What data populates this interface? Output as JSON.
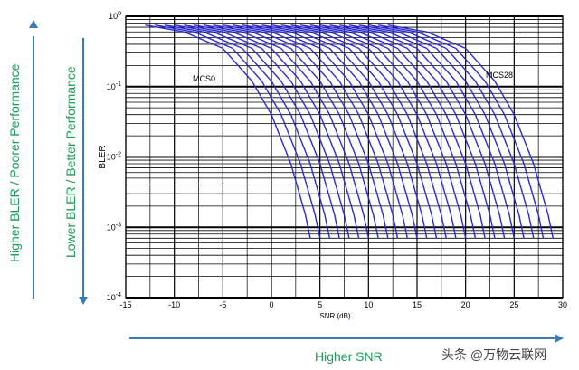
{
  "labels": {
    "left_outer": "Higher  BLER / Poorer Performance",
    "left_inner": "Lower  BLER / Better Performance",
    "bottom": "Higher SNR",
    "watermark": "头条 @万物云联网"
  },
  "colors": {
    "annotation": "#1f9a5a",
    "arrow": "#3a7ab6",
    "curve": "#2b2bd0"
  },
  "chart_data": {
    "type": "line",
    "title": "",
    "xlabel": "SNR (dB)",
    "ylabel": "BLER",
    "xlim": [
      -15,
      30
    ],
    "ylim": [
      0.0001,
      1
    ],
    "yscale": "log",
    "grid": true,
    "x_ticks": [
      "-15",
      "-10",
      "-5",
      "0",
      "5",
      "10",
      "15",
      "20",
      "25",
      "30"
    ],
    "y_ticks": [
      "10^0",
      "10^-1",
      "10^-2",
      "10^-3",
      "10^-4"
    ],
    "annotations": [
      "MCS0",
      "MCS28"
    ],
    "series": [
      {
        "x": [
          -13,
          -9,
          -5,
          -2,
          0,
          2,
          3.5,
          4.0
        ],
        "y": [
          0.75,
          0.6,
          0.35,
          0.12,
          0.04,
          0.008,
          0.0015,
          0.0007
        ]
      },
      {
        "x": [
          -12,
          -8,
          -4,
          -1,
          1,
          3,
          4.5,
          5.0
        ],
        "y": [
          0.75,
          0.6,
          0.35,
          0.12,
          0.04,
          0.008,
          0.0015,
          0.0007
        ]
      },
      {
        "x": [
          -11,
          -7,
          -3,
          0,
          2,
          4,
          5.5,
          6.0
        ],
        "y": [
          0.75,
          0.6,
          0.35,
          0.12,
          0.04,
          0.008,
          0.0015,
          0.0007
        ]
      },
      {
        "x": [
          -10,
          -6,
          -2,
          1,
          3,
          5,
          6.5,
          7.0
        ],
        "y": [
          0.75,
          0.6,
          0.35,
          0.12,
          0.04,
          0.008,
          0.0015,
          0.0007
        ]
      },
      {
        "x": [
          -9,
          -5,
          -1,
          2,
          4,
          6,
          7.5,
          8.0
        ],
        "y": [
          0.75,
          0.6,
          0.35,
          0.12,
          0.04,
          0.008,
          0.0015,
          0.0007
        ]
      },
      {
        "x": [
          -8,
          -4,
          0,
          3,
          5,
          7,
          8.5,
          9.0
        ],
        "y": [
          0.75,
          0.6,
          0.35,
          0.12,
          0.04,
          0.008,
          0.0015,
          0.0007
        ]
      },
      {
        "x": [
          -7,
          -3,
          1,
          4,
          6,
          8,
          9.5,
          10.0
        ],
        "y": [
          0.75,
          0.6,
          0.35,
          0.12,
          0.04,
          0.008,
          0.0015,
          0.0007
        ]
      },
      {
        "x": [
          -6,
          -2,
          2,
          5,
          7,
          9,
          10.5,
          11.0
        ],
        "y": [
          0.75,
          0.6,
          0.35,
          0.12,
          0.04,
          0.008,
          0.0015,
          0.0007
        ]
      },
      {
        "x": [
          -5,
          -1,
          3,
          6,
          8,
          10,
          11.5,
          12.0
        ],
        "y": [
          0.75,
          0.6,
          0.35,
          0.12,
          0.04,
          0.008,
          0.0015,
          0.0007
        ]
      },
      {
        "x": [
          -4,
          0,
          4,
          7,
          9,
          11,
          12.5,
          13.0
        ],
        "y": [
          0.75,
          0.6,
          0.35,
          0.12,
          0.04,
          0.008,
          0.0015,
          0.0007
        ]
      },
      {
        "x": [
          -3,
          1,
          5,
          8,
          10,
          12,
          13.5,
          14.0
        ],
        "y": [
          0.75,
          0.6,
          0.35,
          0.12,
          0.04,
          0.008,
          0.0015,
          0.0007
        ]
      },
      {
        "x": [
          -2,
          2,
          6,
          9,
          11,
          13,
          14.5,
          15.0
        ],
        "y": [
          0.75,
          0.6,
          0.35,
          0.12,
          0.04,
          0.008,
          0.0015,
          0.0007
        ]
      },
      {
        "x": [
          -1,
          3,
          7,
          10,
          12,
          14,
          15.5,
          16.0
        ],
        "y": [
          0.75,
          0.6,
          0.35,
          0.12,
          0.04,
          0.008,
          0.0015,
          0.0007
        ]
      },
      {
        "x": [
          0,
          4,
          8,
          11,
          13,
          15,
          16.5,
          17.0
        ],
        "y": [
          0.75,
          0.6,
          0.35,
          0.12,
          0.04,
          0.008,
          0.0015,
          0.0007
        ]
      },
      {
        "x": [
          1,
          5,
          9,
          12,
          14,
          16,
          17.5,
          18.0
        ],
        "y": [
          0.75,
          0.6,
          0.35,
          0.12,
          0.04,
          0.008,
          0.0015,
          0.0007
        ]
      },
      {
        "x": [
          2,
          6,
          10,
          13,
          15,
          17,
          18.5,
          19.0
        ],
        "y": [
          0.75,
          0.6,
          0.35,
          0.12,
          0.04,
          0.008,
          0.0015,
          0.0007
        ]
      },
      {
        "x": [
          3,
          7,
          11,
          14,
          16,
          18,
          19.5,
          20.0
        ],
        "y": [
          0.75,
          0.6,
          0.35,
          0.12,
          0.04,
          0.008,
          0.0015,
          0.0007
        ]
      },
      {
        "x": [
          4,
          8,
          12,
          15,
          17,
          19,
          20.5,
          21.0
        ],
        "y": [
          0.75,
          0.6,
          0.35,
          0.12,
          0.04,
          0.008,
          0.0015,
          0.0007
        ]
      },
      {
        "x": [
          5,
          9,
          13,
          16,
          18,
          20,
          21.5,
          22.0
        ],
        "y": [
          0.75,
          0.6,
          0.35,
          0.12,
          0.04,
          0.008,
          0.0015,
          0.0007
        ]
      },
      {
        "x": [
          6,
          10,
          14,
          17,
          19,
          21,
          22.5,
          23.0
        ],
        "y": [
          0.75,
          0.6,
          0.35,
          0.12,
          0.04,
          0.008,
          0.0015,
          0.0007
        ]
      },
      {
        "x": [
          7,
          11,
          15,
          18,
          20,
          22,
          23.5,
          24.0
        ],
        "y": [
          0.75,
          0.6,
          0.35,
          0.12,
          0.04,
          0.008,
          0.0015,
          0.0007
        ]
      },
      {
        "x": [
          8,
          12,
          16,
          19,
          21,
          23,
          24.5,
          25.0
        ],
        "y": [
          0.75,
          0.6,
          0.35,
          0.12,
          0.04,
          0.008,
          0.0015,
          0.0007
        ]
      },
      {
        "x": [
          9,
          13,
          17,
          20,
          22,
          24,
          25.5,
          26.0
        ],
        "y": [
          0.75,
          0.6,
          0.35,
          0.12,
          0.04,
          0.008,
          0.0015,
          0.0007
        ]
      },
      {
        "x": [
          10,
          14,
          18,
          21,
          23,
          25,
          26.5,
          27.0
        ],
        "y": [
          0.75,
          0.6,
          0.35,
          0.12,
          0.04,
          0.008,
          0.0015,
          0.0007
        ]
      },
      {
        "x": [
          11,
          15,
          19,
          22,
          24,
          26,
          27.5,
          28.0
        ],
        "y": [
          0.75,
          0.6,
          0.35,
          0.12,
          0.04,
          0.008,
          0.0015,
          0.0007
        ]
      },
      {
        "x": [
          12,
          16,
          20,
          23,
          25,
          27,
          28.5,
          29.0
        ],
        "y": [
          0.75,
          0.6,
          0.35,
          0.12,
          0.04,
          0.008,
          0.0015,
          0.0007
        ]
      }
    ]
  }
}
